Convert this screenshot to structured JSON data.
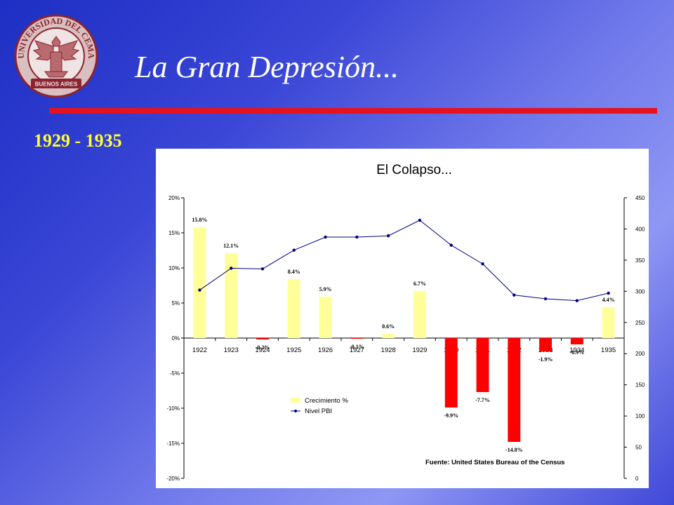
{
  "slide": {
    "title": "La Gran Depresión...",
    "period": "1929 - 1935",
    "seal": {
      "top_text": "UNIVERSIDAD DEL CEMA",
      "banner_text": "BUENOS AIRES",
      "colors": {
        "ring": "#8a2430",
        "fill": "#d9bfbf",
        "eagle": "#b86a6f"
      }
    },
    "accent_color": "#e8121c"
  },
  "chart_data": {
    "type": "bar",
    "title": "El Colapso...",
    "source": "Fuente:  United States Bureau of the Census",
    "categories": [
      "1922",
      "1923",
      "1924",
      "1925",
      "1926",
      "1927",
      "1928",
      "1929",
      "1930",
      "1931",
      "1932",
      "1933",
      "1934",
      "1935"
    ],
    "series": [
      {
        "name": "Crecimiento %",
        "type": "bar",
        "axis": "left",
        "values": [
          15.8,
          12.1,
          -0.2,
          8.4,
          5.9,
          -0.1,
          0.6,
          6.7,
          -9.9,
          -7.7,
          -14.8,
          -1.9,
          -0.9,
          4.4
        ],
        "labels": [
          "15.8%",
          "12.1%",
          "-0.2%",
          "8.4%",
          "5.9%",
          "-0.1%",
          "0.6%",
          "6.7%",
          "-9.9%",
          "-7.7%",
          "-14.8%",
          "-1.9%",
          "-0.9%",
          "4.4%"
        ],
        "colors": {
          "positive": "#ffff99",
          "negative": "#ff0000"
        }
      },
      {
        "name": "Nivel PBI",
        "type": "line",
        "axis": "right",
        "values": [
          302,
          337,
          336,
          366,
          387,
          387,
          389,
          414,
          374,
          344,
          294,
          288,
          285,
          297
        ],
        "color": "#000080"
      }
    ],
    "y_left": {
      "range": [
        -20,
        20
      ],
      "ticks": [
        "-20%",
        "-15%",
        "-10%",
        "-5%",
        "0%",
        "5%",
        "10%",
        "15%",
        "20%"
      ],
      "tick_values": [
        -20,
        -15,
        -10,
        -5,
        0,
        5,
        10,
        15,
        20
      ]
    },
    "y_right": {
      "range": [
        0,
        450
      ],
      "ticks": [
        "0",
        "50",
        "100",
        "150",
        "200",
        "250",
        "300",
        "350",
        "400",
        "450"
      ],
      "tick_values": [
        0,
        50,
        100,
        150,
        200,
        250,
        300,
        350,
        400,
        450
      ]
    },
    "grid": false,
    "legend_position": "bottom-center"
  }
}
